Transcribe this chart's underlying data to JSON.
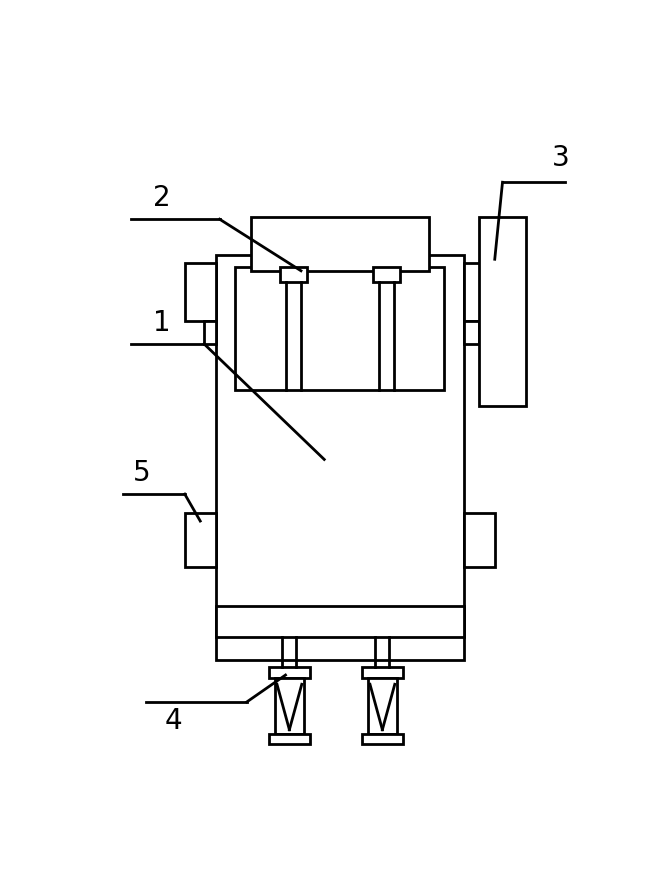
{
  "bg_color": "#ffffff",
  "line_color": "#000000",
  "lw": 2.0,
  "fig_width": 6.72,
  "fig_height": 8.77,
  "label_fontsize": 20
}
